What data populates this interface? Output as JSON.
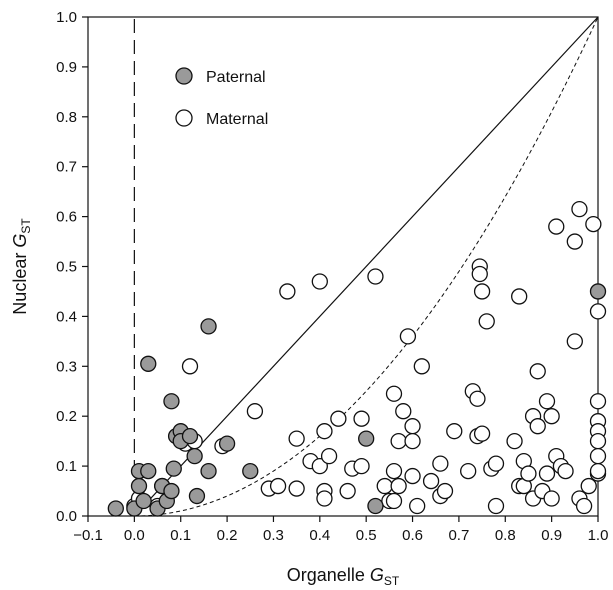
{
  "chart_data": {
    "type": "scatter",
    "xlabel": {
      "main": "Organelle ",
      "italic": "G",
      "sub": "ST"
    },
    "ylabel": {
      "main": "Nuclear ",
      "italic": "G",
      "sub": "ST"
    },
    "xlim": [
      -0.1,
      1.0
    ],
    "ylim": [
      0.0,
      1.0
    ],
    "xticks": [
      "−0.1",
      "0.0",
      "0.1",
      "0.2",
      "0.3",
      "0.4",
      "0.5",
      "0.6",
      "0.7",
      "0.8",
      "0.9",
      "1.0"
    ],
    "yticks": [
      "0.0",
      "0.1",
      "0.2",
      "0.3",
      "0.4",
      "0.5",
      "0.6",
      "0.7",
      "0.8",
      "0.9",
      "1.0"
    ],
    "grid": false,
    "legend_position": "top-left",
    "reference_lines": [
      {
        "type": "vertical",
        "x": 0.0,
        "style": "long-dash"
      },
      {
        "type": "identity",
        "style": "solid"
      },
      {
        "type": "curve",
        "style": "short-dash",
        "note": "y = x^2 (approx.)"
      }
    ],
    "series": [
      {
        "name": "Paternal",
        "fill": "#9a9a9a",
        "points": [
          [
            -0.04,
            0.015
          ],
          [
            0.0,
            0.015
          ],
          [
            0.01,
            0.09
          ],
          [
            0.01,
            0.06
          ],
          [
            0.02,
            0.03
          ],
          [
            0.03,
            0.09
          ],
          [
            0.03,
            0.305
          ],
          [
            0.05,
            0.015
          ],
          [
            0.06,
            0.06
          ],
          [
            0.07,
            0.03
          ],
          [
            0.08,
            0.05
          ],
          [
            0.08,
            0.23
          ],
          [
            0.085,
            0.095
          ],
          [
            0.09,
            0.16
          ],
          [
            0.1,
            0.17
          ],
          [
            0.1,
            0.15
          ],
          [
            0.12,
            0.16
          ],
          [
            0.13,
            0.12
          ],
          [
            0.135,
            0.04
          ],
          [
            0.16,
            0.38
          ],
          [
            0.16,
            0.09
          ],
          [
            0.2,
            0.145
          ],
          [
            0.25,
            0.09
          ],
          [
            0.5,
            0.155
          ],
          [
            0.52,
            0.02
          ],
          [
            1.0,
            0.45
          ]
        ]
      },
      {
        "name": "Maternal",
        "fill": "#ffffff",
        "points": [
          [
            0.0,
            0.02
          ],
          [
            0.01,
            0.035
          ],
          [
            0.05,
            0.02
          ],
          [
            0.06,
            0.06
          ],
          [
            0.11,
            0.145
          ],
          [
            0.12,
            0.3
          ],
          [
            0.13,
            0.15
          ],
          [
            0.19,
            0.14
          ],
          [
            0.26,
            0.21
          ],
          [
            0.29,
            0.055
          ],
          [
            0.31,
            0.06
          ],
          [
            0.33,
            0.45
          ],
          [
            0.35,
            0.155
          ],
          [
            0.35,
            0.055
          ],
          [
            0.38,
            0.11
          ],
          [
            0.4,
            0.47
          ],
          [
            0.4,
            0.1
          ],
          [
            0.41,
            0.17
          ],
          [
            0.41,
            0.05
          ],
          [
            0.41,
            0.035
          ],
          [
            0.42,
            0.12
          ],
          [
            0.44,
            0.195
          ],
          [
            0.46,
            0.05
          ],
          [
            0.47,
            0.095
          ],
          [
            0.49,
            0.195
          ],
          [
            0.49,
            0.1
          ],
          [
            0.52,
            0.48
          ],
          [
            0.54,
            0.06
          ],
          [
            0.55,
            0.03
          ],
          [
            0.56,
            0.245
          ],
          [
            0.56,
            0.09
          ],
          [
            0.56,
            0.03
          ],
          [
            0.57,
            0.06
          ],
          [
            0.57,
            0.15
          ],
          [
            0.58,
            0.21
          ],
          [
            0.59,
            0.36
          ],
          [
            0.6,
            0.18
          ],
          [
            0.6,
            0.15
          ],
          [
            0.6,
            0.08
          ],
          [
            0.61,
            0.02
          ],
          [
            0.62,
            0.3
          ],
          [
            0.64,
            0.07
          ],
          [
            0.66,
            0.04
          ],
          [
            0.66,
            0.105
          ],
          [
            0.67,
            0.05
          ],
          [
            0.69,
            0.17
          ],
          [
            0.72,
            0.09
          ],
          [
            0.73,
            0.25
          ],
          [
            0.74,
            0.235
          ],
          [
            0.74,
            0.16
          ],
          [
            0.745,
            0.5
          ],
          [
            0.745,
            0.485
          ],
          [
            0.75,
            0.45
          ],
          [
            0.75,
            0.165
          ],
          [
            0.76,
            0.39
          ],
          [
            0.77,
            0.095
          ],
          [
            0.78,
            0.105
          ],
          [
            0.78,
            0.02
          ],
          [
            0.82,
            0.15
          ],
          [
            0.83,
            0.06
          ],
          [
            0.83,
            0.44
          ],
          [
            0.84,
            0.11
          ],
          [
            0.84,
            0.06
          ],
          [
            0.85,
            0.085
          ],
          [
            0.86,
            0.2
          ],
          [
            0.86,
            0.035
          ],
          [
            0.87,
            0.18
          ],
          [
            0.87,
            0.29
          ],
          [
            0.88,
            0.05
          ],
          [
            0.89,
            0.23
          ],
          [
            0.89,
            0.085
          ],
          [
            0.9,
            0.2
          ],
          [
            0.9,
            0.035
          ],
          [
            0.91,
            0.12
          ],
          [
            0.91,
            0.58
          ],
          [
            0.92,
            0.1
          ],
          [
            0.93,
            0.09
          ],
          [
            0.95,
            0.35
          ],
          [
            0.95,
            0.55
          ],
          [
            0.96,
            0.615
          ],
          [
            0.96,
            0.035
          ],
          [
            0.97,
            0.02
          ],
          [
            0.98,
            0.06
          ],
          [
            0.99,
            0.585
          ],
          [
            1.0,
            0.41
          ],
          [
            1.0,
            0.23
          ],
          [
            1.0,
            0.19
          ],
          [
            1.0,
            0.17
          ],
          [
            1.0,
            0.15
          ],
          [
            1.0,
            0.12
          ],
          [
            1.0,
            0.085
          ],
          [
            1.0,
            0.09
          ]
        ]
      }
    ]
  }
}
